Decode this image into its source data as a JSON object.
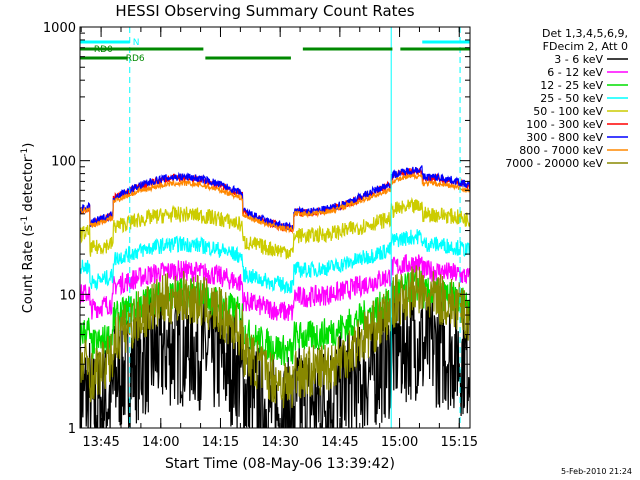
{
  "chart_data": {
    "type": "line",
    "title": "HESSI Observing Summary Count Rates",
    "xlabel": "Start Time (08-May-06 13:39:42)",
    "ylabel_main": "Count Rate (s",
    "ylabel_sup1": "-1",
    "ylabel_mid": " detector",
    "ylabel_sup2": "-1",
    "ylabel_end": ")",
    "y_scale": "log",
    "ylim": [
      1,
      1000
    ],
    "y_ticks": [
      "1",
      "10",
      "100",
      "1000"
    ],
    "xlim_minutes": [
      0,
      98
    ],
    "x_ticks": [
      {
        "label": "13:45",
        "minute": 5.3
      },
      {
        "label": "14:00",
        "minute": 20.3
      },
      {
        "label": "14:15",
        "minute": 35.3
      },
      {
        "label": "14:30",
        "minute": 50.3
      },
      {
        "label": "14:45",
        "minute": 65.3
      },
      {
        "label": "15:00",
        "minute": 80.3
      },
      {
        "label": "15:15",
        "minute": 95.3
      }
    ],
    "legend_header": [
      "Det 1,3,4,5,6,9,",
      "FDecim 2, Att 0"
    ],
    "legend_placement": "top-right, outside plot",
    "series": [
      {
        "name": "3 - 6 keV",
        "color": "#000000",
        "base": 2.5,
        "swing": 1.6,
        "noise": 0.45
      },
      {
        "name": "6 - 12 keV",
        "color": "#ff00ff",
        "base": 12,
        "swing": 1.25,
        "noise": 0.08
      },
      {
        "name": "12 - 25 keV",
        "color": "#00dd00",
        "base": 7,
        "swing": 1.45,
        "noise": 0.12
      },
      {
        "name": "25 - 50 keV",
        "color": "#00ffff",
        "base": 19,
        "swing": 1.25,
        "noise": 0.06
      },
      {
        "name": "50 - 100 keV",
        "color": "#cccc00",
        "base": 33,
        "swing": 1.2,
        "noise": 0.06
      },
      {
        "name": "100 - 300 keV",
        "color": "#ff0000",
        "base": 55,
        "swing": 1.35,
        "noise": 0.03
      },
      {
        "name": "300 - 800 keV",
        "color": "#0000ff",
        "base": 56,
        "swing": 1.35,
        "noise": 0.03
      },
      {
        "name": "800 - 7000 keV",
        "color": "#ff8800",
        "base": 52,
        "swing": 1.3,
        "noise": 0.02
      },
      {
        "name": "7000 - 20000 keV",
        "color": "#888800",
        "base": 5,
        "swing": 1.9,
        "noise": 0.2
      }
    ],
    "night_intervals": [
      [
        2.5,
        8.4
      ],
      [
        40.8,
        53.7
      ]
    ],
    "saa_intervals": [
      [
        78.2,
        86.0
      ]
    ],
    "markers": {
      "top_bar_color": "#00ffff",
      "n_label": "N",
      "n_minute": 12.5,
      "rd_color": "#008800",
      "rd0_label": "RD0",
      "rd6_label": "RD6",
      "dashed_lines_minutes": [
        12.5,
        95.5
      ],
      "solid_lines_minutes": [
        0,
        78.2
      ]
    }
  },
  "footer_date": "5-Feb-2010 21:24"
}
